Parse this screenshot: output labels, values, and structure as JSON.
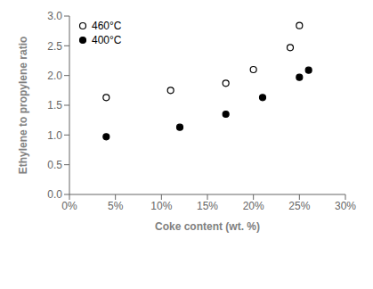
{
  "chart_data": {
    "type": "scatter",
    "xlabel": "Coke content (wt. %)",
    "ylabel": "Ethylene to propylene ratio",
    "series": [
      {
        "name": "460°C",
        "color": "black",
        "marker": "open_circle",
        "x": [
          0.04,
          0.11,
          0.17,
          0.2,
          0.24,
          0.25
        ],
        "values": [
          1.63,
          1.75,
          1.87,
          2.1,
          2.47,
          2.84
        ]
      },
      {
        "name": "400°C",
        "color": "black",
        "marker": "filled_circle",
        "x": [
          0.04,
          0.12,
          0.17,
          0.21,
          0.25,
          0.26
        ],
        "values": [
          0.97,
          1.13,
          1.35,
          1.63,
          1.97,
          2.09
        ]
      }
    ],
    "xlim": [
      0.0,
      0.3
    ],
    "ylim": [
      0.0,
      3.0
    ],
    "xticks": [
      {
        "value": 0.0,
        "label": "0%"
      },
      {
        "value": 0.05,
        "label": "5%"
      },
      {
        "value": 0.1,
        "label": "10%"
      },
      {
        "value": 0.15,
        "label": "15%"
      },
      {
        "value": 0.2,
        "label": "20%"
      },
      {
        "value": 0.25,
        "label": "25%"
      },
      {
        "value": 0.3,
        "label": "30%"
      }
    ],
    "yticks": [
      {
        "value": 0.0,
        "label": "0.0"
      },
      0.5,
      {
        "value": 1.0,
        "label": "1.0"
      },
      1.5,
      {
        "value": 2.0,
        "label": "2.0"
      },
      2.5,
      {
        "value": 3.0,
        "label": "3.0"
      }
    ],
    "grid": false,
    "legend": "upper left"
  }
}
